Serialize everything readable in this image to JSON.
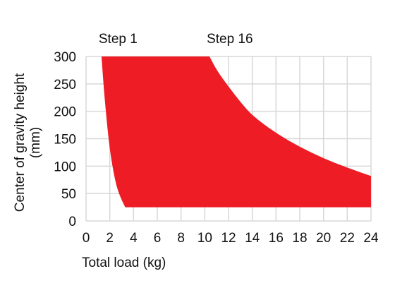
{
  "chart_data": {
    "type": "area",
    "xlabel": "Total load (kg)",
    "ylabel_line1": "Center of gravity height",
    "ylabel_line2": "(mm)",
    "xlim": [
      0,
      24
    ],
    "ylim": [
      0,
      300
    ],
    "xticks": [
      0,
      2,
      4,
      6,
      8,
      10,
      12,
      14,
      16,
      18,
      20,
      22,
      24
    ],
    "yticks": [
      0,
      50,
      100,
      150,
      200,
      250,
      300
    ],
    "grid": true,
    "fill_color": "#ee1c25",
    "grid_color": "#d8d8d8",
    "annotations": [
      {
        "text": "Step 1",
        "x": 1.3
      },
      {
        "text": "Step 16",
        "x": 10.4
      }
    ],
    "series": [
      {
        "boundary": "left",
        "points": [
          {
            "x": 1.3,
            "y": 300
          },
          {
            "x": 1.5,
            "y": 240
          },
          {
            "x": 1.75,
            "y": 180
          },
          {
            "x": 2.0,
            "y": 130
          },
          {
            "x": 2.3,
            "y": 90
          },
          {
            "x": 2.6,
            "y": 60
          },
          {
            "x": 3.0,
            "y": 38
          },
          {
            "x": 3.3,
            "y": 25
          }
        ]
      },
      {
        "boundary": "right",
        "points": [
          {
            "x": 10.4,
            "y": 300
          },
          {
            "x": 11.0,
            "y": 275
          },
          {
            "x": 12.0,
            "y": 245
          },
          {
            "x": 13.0,
            "y": 217
          },
          {
            "x": 14.0,
            "y": 192
          },
          {
            "x": 16.0,
            "y": 160
          },
          {
            "x": 18.0,
            "y": 135
          },
          {
            "x": 20.0,
            "y": 114
          },
          {
            "x": 22.0,
            "y": 97
          },
          {
            "x": 24.0,
            "y": 82
          }
        ]
      },
      {
        "boundary": "bottom",
        "points": [
          {
            "x": 3.3,
            "y": 25
          },
          {
            "x": 24.0,
            "y": 25
          }
        ]
      }
    ]
  }
}
